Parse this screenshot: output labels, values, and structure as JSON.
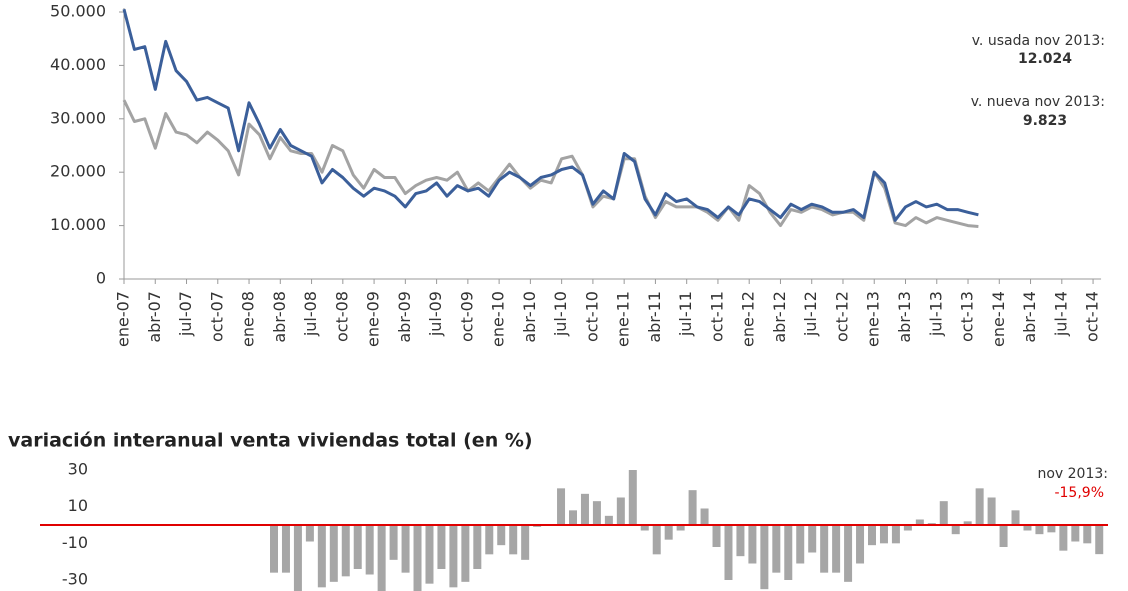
{
  "chart_data": [
    {
      "type": "line",
      "categories": [
        "ene-07",
        null,
        null,
        "abr-07",
        null,
        null,
        "jul-07",
        null,
        null,
        "oct-07",
        null,
        null,
        "ene-08",
        null,
        null,
        "abr-08",
        null,
        null,
        "jul-08",
        null,
        null,
        "oct-08",
        null,
        null,
        "ene-09",
        null,
        null,
        "abr-09",
        null,
        null,
        "jul-09",
        null,
        null,
        "oct-09",
        null,
        null,
        "ene-10",
        null,
        null,
        "abr-10",
        null,
        null,
        "jul-10",
        null,
        null,
        "oct-10",
        null,
        null,
        "ene-11",
        null,
        null,
        "abr-11",
        null,
        null,
        "jul-11",
        null,
        null,
        "oct-11",
        null,
        null,
        "ene-12",
        null,
        null,
        "abr-12",
        null,
        null,
        "jul-12",
        null,
        null,
        "oct-12",
        null,
        null,
        "ene-13",
        null,
        null,
        "abr-13",
        null,
        null,
        "jul-13",
        null,
        null,
        "oct-13",
        null,
        null,
        "ene-14",
        null,
        null,
        "abr-14",
        null,
        null,
        "jul-14",
        null,
        null,
        "oct-14"
      ],
      "series": [
        {
          "name": "v. usada",
          "color": "#3b5f9a",
          "values": [
            50500,
            43000,
            43500,
            35500,
            44500,
            39000,
            37000,
            33500,
            34000,
            33000,
            32000,
            24000,
            33000,
            29000,
            24500,
            28000,
            25000,
            24000,
            23000,
            18000,
            20500,
            19000,
            17000,
            15500,
            17000,
            16500,
            15500,
            13500,
            16000,
            16500,
            18000,
            15500,
            17500,
            16500,
            17000,
            15500,
            18500,
            20000,
            19000,
            17500,
            19000,
            19500,
            20500,
            21000,
            19500,
            14000,
            16500,
            15000,
            23500,
            22000,
            15000,
            12000,
            16000,
            14500,
            15000,
            13500,
            13000,
            11500,
            13500,
            12000,
            15000,
            14500,
            13000,
            11500,
            14000,
            13000,
            14000,
            13500,
            12500,
            12500,
            13000,
            11500,
            20000,
            18000,
            11000,
            13500,
            14500,
            13500,
            14000,
            13000,
            13000,
            12500,
            12024,
            null,
            null,
            null,
            null,
            null,
            null,
            null,
            null,
            null,
            null,
            null
          ]
        },
        {
          "name": "v. nueva",
          "color": "#a3a3a3",
          "values": [
            33500,
            29500,
            30000,
            24500,
            31000,
            27500,
            27000,
            25500,
            27500,
            26000,
            24000,
            19500,
            29000,
            27000,
            22500,
            26500,
            24000,
            23500,
            23500,
            20000,
            25000,
            24000,
            19500,
            17000,
            20500,
            19000,
            19000,
            16000,
            17500,
            18500,
            19000,
            18500,
            20000,
            16500,
            18000,
            16500,
            19000,
            21500,
            19000,
            17000,
            18500,
            18000,
            22500,
            23000,
            19500,
            13500,
            15500,
            15000,
            22500,
            22500,
            15500,
            11500,
            14500,
            13500,
            13500,
            13500,
            12500,
            11000,
            13500,
            11000,
            17500,
            16000,
            12500,
            10000,
            13000,
            12500,
            13500,
            13000,
            12000,
            12500,
            12500,
            11000,
            20000,
            17000,
            10500,
            10000,
            11500,
            10500,
            11500,
            11000,
            10500,
            10000,
            9823,
            null,
            null,
            null,
            null,
            null,
            null,
            null,
            null,
            null,
            null,
            null
          ]
        }
      ],
      "ylim": [
        0,
        50000
      ],
      "yticks": [
        0,
        {
          "value": 10000,
          "label": "10.000"
        },
        {
          "value": 20000,
          "label": "20.000"
        },
        {
          "value": 30000,
          "label": "30.000"
        },
        {
          "value": 40000,
          "label": "40.000"
        },
        {
          "value": 50000,
          "label": "50.000"
        }
      ],
      "annotations": [
        {
          "text": "v. usada nov 2013:"
        },
        {
          "text": "12.024",
          "bold": true
        },
        {
          "text": "v. nueva nov 2013:"
        },
        {
          "text": "9.823",
          "bold": true
        }
      ]
    },
    {
      "type": "bar",
      "title": "variación interanual venta viviendas total (en %)",
      "color": "#a6a6a6",
      "zero_line_color": "#e00000",
      "values": [
        -26,
        -26,
        -36,
        -9,
        -34,
        -31,
        -28,
        -24,
        -27,
        -36,
        -19,
        -26,
        -36,
        -32,
        -24,
        -34,
        -31,
        -24,
        -16,
        -11,
        -16,
        -19,
        -1,
        0,
        20,
        8,
        17,
        13,
        5,
        15,
        30,
        -3,
        -16,
        -8,
        -3,
        19,
        9,
        -12,
        -30,
        -17,
        -21,
        -35,
        -26,
        -30,
        -21,
        -15,
        -26,
        -26,
        -31,
        -21,
        -11,
        -10,
        -10,
        -3,
        3,
        1,
        13,
        -5,
        2,
        20,
        15,
        -12,
        8,
        -3,
        -5,
        -4,
        -14,
        -9,
        -10,
        -15.9
      ],
      "ylim": [
        -36,
        36
      ],
      "yticks": [
        30,
        10,
        -10,
        -30
      ],
      "annotations": [
        {
          "text": "nov 2013:"
        },
        {
          "text": "-15,9%",
          "color": "#e00000"
        }
      ]
    }
  ]
}
